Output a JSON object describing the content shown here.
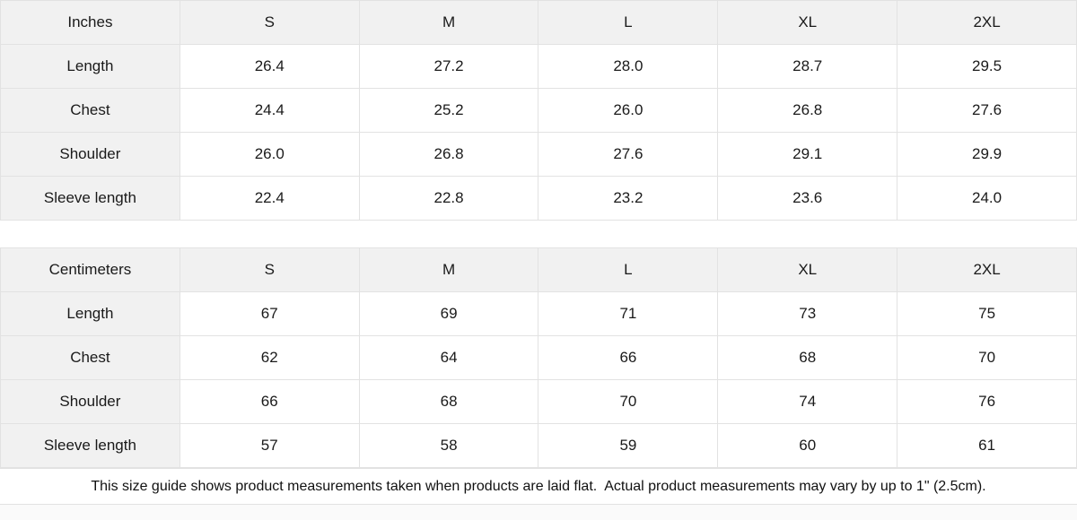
{
  "colors": {
    "header_bg": "#f1f1f1",
    "cell_bg": "#ffffff",
    "border": "#e2e2e2",
    "text": "#1a1a1a",
    "page_bg": "#fafafa"
  },
  "inches_table": {
    "unit_label": "Inches",
    "size_headers": [
      "S",
      "M",
      "L",
      "XL",
      "2XL"
    ],
    "rows": [
      {
        "label": "Length",
        "values": [
          "26.4",
          "27.2",
          "28.0",
          "28.7",
          "29.5"
        ]
      },
      {
        "label": "Chest",
        "values": [
          "24.4",
          "25.2",
          "26.0",
          "26.8",
          "27.6"
        ]
      },
      {
        "label": "Shoulder",
        "values": [
          "26.0",
          "26.8",
          "27.6",
          "29.1",
          "29.9"
        ]
      },
      {
        "label": "Sleeve length",
        "values": [
          "22.4",
          "22.8",
          "23.2",
          "23.6",
          "24.0"
        ]
      }
    ]
  },
  "centimeters_table": {
    "unit_label": "Centimeters",
    "size_headers": [
      "S",
      "M",
      "L",
      "XL",
      "2XL"
    ],
    "rows": [
      {
        "label": "Length",
        "values": [
          "67",
          "69",
          "71",
          "73",
          "75"
        ]
      },
      {
        "label": "Chest",
        "values": [
          "62",
          "64",
          "66",
          "68",
          "70"
        ]
      },
      {
        "label": "Shoulder",
        "values": [
          "66",
          "68",
          "70",
          "74",
          "76"
        ]
      },
      {
        "label": "Sleeve length",
        "values": [
          "57",
          "58",
          "59",
          "60",
          "61"
        ]
      }
    ]
  },
  "footer": {
    "note": "This size guide shows product measurements taken when products are laid flat.  Actual product measurements may vary by up to 1\" (2.5cm)."
  }
}
